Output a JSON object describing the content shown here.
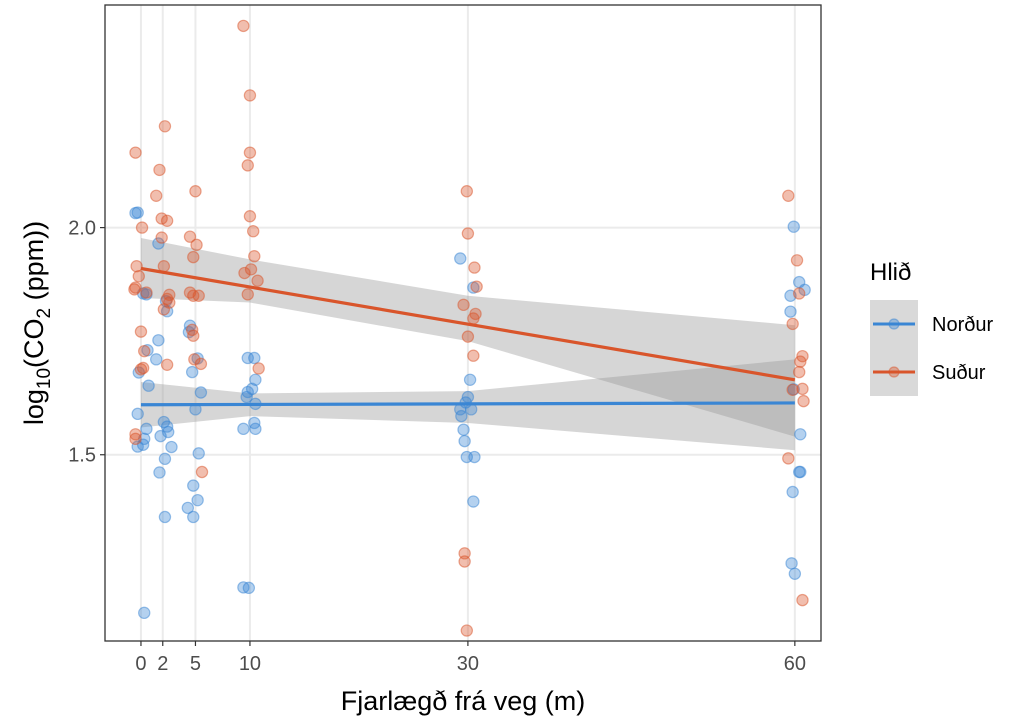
{
  "chart_data": {
    "type": "scatter",
    "title": "",
    "xlabel": "Fjarlægð frá veg (m)",
    "ylabel": {
      "prefix": "log",
      "sub1": "10",
      "mid": "(CO",
      "sub2": "2",
      "suffix": " (ppm))"
    },
    "xlim": [
      -3.3,
      62.4
    ],
    "ylim": [
      1.09,
      2.49
    ],
    "x_ticks": [
      {
        "value": 0,
        "label": "0"
      },
      {
        "value": 2,
        "label": "2"
      },
      {
        "value": 5,
        "label": "5"
      },
      {
        "value": 10,
        "label": "10"
      },
      {
        "value": 30,
        "label": "30"
      },
      {
        "value": 60,
        "label": "60"
      }
    ],
    "y_ticks": [
      {
        "value": 1.5,
        "label": "1.5"
      },
      {
        "value": 2.0,
        "label": "2.0"
      }
    ],
    "grid": true,
    "legend": {
      "title": "Hlið",
      "position": "right"
    },
    "series": [
      {
        "name": "Norður",
        "color": "#3a86d4",
        "trend": {
          "x": [
            0,
            60
          ],
          "y": [
            1.61,
            1.614
          ]
        },
        "band": {
          "x": [
            0,
            10,
            30,
            60
          ],
          "lower": [
            1.56,
            1.585,
            1.57,
            1.51
          ],
          "upper": [
            1.66,
            1.635,
            1.64,
            1.71
          ]
        },
        "points": [
          [
            -0.3,
            2.033
          ],
          [
            -0.5,
            2.032
          ],
          [
            0.5,
            1.853
          ],
          [
            0.2,
            1.855
          ],
          [
            0.6,
            1.73
          ],
          [
            -0.2,
            1.681
          ],
          [
            0.7,
            1.652
          ],
          [
            -0.3,
            1.59
          ],
          [
            0.5,
            1.557
          ],
          [
            0.3,
            1.535
          ],
          [
            -0.3,
            1.518
          ],
          [
            0.2,
            1.522
          ],
          [
            0.3,
            1.152
          ],
          [
            1.6,
            1.965
          ],
          [
            2.3,
            1.838
          ],
          [
            2.4,
            1.816
          ],
          [
            1.4,
            1.71
          ],
          [
            1.6,
            1.752
          ],
          [
            2.4,
            1.562
          ],
          [
            2.1,
            1.572
          ],
          [
            1.8,
            1.541
          ],
          [
            2.5,
            1.55
          ],
          [
            2.8,
            1.517
          ],
          [
            2.2,
            1.491
          ],
          [
            1.7,
            1.461
          ],
          [
            2.2,
            1.363
          ],
          [
            4.5,
            1.784
          ],
          [
            4.4,
            1.77
          ],
          [
            5.2,
            1.712
          ],
          [
            4.7,
            1.682
          ],
          [
            5.5,
            1.637
          ],
          [
            5.0,
            1.6
          ],
          [
            5.3,
            1.503
          ],
          [
            4.8,
            1.432
          ],
          [
            5.2,
            1.4
          ],
          [
            4.3,
            1.383
          ],
          [
            4.8,
            1.363
          ],
          [
            9.8,
            1.713
          ],
          [
            10.4,
            1.713
          ],
          [
            10.5,
            1.665
          ],
          [
            10.2,
            1.645
          ],
          [
            9.8,
            1.638
          ],
          [
            9.7,
            1.627
          ],
          [
            10.5,
            1.612
          ],
          [
            10.4,
            1.57
          ],
          [
            9.4,
            1.557
          ],
          [
            10.5,
            1.557
          ],
          [
            9.4,
            1.208
          ],
          [
            9.9,
            1.207
          ],
          [
            29.3,
            1.932
          ],
          [
            30.5,
            1.868
          ],
          [
            30.2,
            1.665
          ],
          [
            30.0,
            1.627
          ],
          [
            29.8,
            1.615
          ],
          [
            29.3,
            1.6
          ],
          [
            30.3,
            1.6
          ],
          [
            29.4,
            1.585
          ],
          [
            29.6,
            1.555
          ],
          [
            29.7,
            1.53
          ],
          [
            29.9,
            1.495
          ],
          [
            30.6,
            1.495
          ],
          [
            30.5,
            1.397
          ],
          [
            59.9,
            2.002
          ],
          [
            60.4,
            1.88
          ],
          [
            60.9,
            1.863
          ],
          [
            59.6,
            1.85
          ],
          [
            59.6,
            1.815
          ],
          [
            59.9,
            1.644
          ],
          [
            60.5,
            1.545
          ],
          [
            60.4,
            1.462
          ],
          [
            60.5,
            1.462
          ],
          [
            59.8,
            1.418
          ],
          [
            59.7,
            1.261
          ],
          [
            60.0,
            1.238
          ]
        ]
      },
      {
        "name": "Suður",
        "color": "#d9552b",
        "trend": {
          "x": [
            0,
            60
          ],
          "y": [
            1.91,
            1.665
          ]
        },
        "band": {
          "x": [
            0,
            10,
            30,
            60
          ],
          "lower": [
            1.845,
            1.835,
            1.75,
            1.54
          ],
          "upper": [
            1.977,
            1.93,
            1.85,
            1.785
          ]
        },
        "points": [
          [
            -0.5,
            2.165
          ],
          [
            0.1,
            2.0
          ],
          [
            -0.4,
            1.915
          ],
          [
            -0.2,
            1.893
          ],
          [
            -0.5,
            1.868
          ],
          [
            -0.6,
            1.864
          ],
          [
            0.5,
            1.857
          ],
          [
            0.0,
            1.771
          ],
          [
            0.3,
            1.728
          ],
          [
            0.0,
            1.688
          ],
          [
            0.2,
            1.691
          ],
          [
            -0.5,
            1.545
          ],
          [
            -0.5,
            1.535
          ],
          [
            2.2,
            2.223
          ],
          [
            1.7,
            2.127
          ],
          [
            1.4,
            2.07
          ],
          [
            1.9,
            2.02
          ],
          [
            2.4,
            2.015
          ],
          [
            1.9,
            1.978
          ],
          [
            2.1,
            1.915
          ],
          [
            2.6,
            1.852
          ],
          [
            2.4,
            1.843
          ],
          [
            2.6,
            1.835
          ],
          [
            2.1,
            1.82
          ],
          [
            2.4,
            1.698
          ],
          [
            5.0,
            2.08
          ],
          [
            4.5,
            1.98
          ],
          [
            5.1,
            1.962
          ],
          [
            4.8,
            1.935
          ],
          [
            4.5,
            1.857
          ],
          [
            4.8,
            1.85
          ],
          [
            5.3,
            1.85
          ],
          [
            4.7,
            1.775
          ],
          [
            4.8,
            1.762
          ],
          [
            4.9,
            1.71
          ],
          [
            5.5,
            1.7
          ],
          [
            5.6,
            1.462
          ],
          [
            9.4,
            2.444
          ],
          [
            10.0,
            2.291
          ],
          [
            10.0,
            2.165
          ],
          [
            9.8,
            2.137
          ],
          [
            10.0,
            2.025
          ],
          [
            10.3,
            1.992
          ],
          [
            10.4,
            1.937
          ],
          [
            10.1,
            1.908
          ],
          [
            9.5,
            1.9
          ],
          [
            10.7,
            1.883
          ],
          [
            9.8,
            1.853
          ],
          [
            10.8,
            1.69
          ],
          [
            29.9,
            2.08
          ],
          [
            30.0,
            1.987
          ],
          [
            30.6,
            1.912
          ],
          [
            30.8,
            1.87
          ],
          [
            30.7,
            1.81
          ],
          [
            29.6,
            1.83
          ],
          [
            30.5,
            1.8
          ],
          [
            30.0,
            1.76
          ],
          [
            30.5,
            1.718
          ],
          [
            29.7,
            1.283
          ],
          [
            29.7,
            1.265
          ],
          [
            29.9,
            1.113
          ],
          [
            59.4,
            2.07
          ],
          [
            60.2,
            1.928
          ],
          [
            60.4,
            1.855
          ],
          [
            59.8,
            1.788
          ],
          [
            60.7,
            1.717
          ],
          [
            60.5,
            1.705
          ],
          [
            60.4,
            1.682
          ],
          [
            60.7,
            1.645
          ],
          [
            59.8,
            1.643
          ],
          [
            60.8,
            1.618
          ],
          [
            59.4,
            1.492
          ],
          [
            60.7,
            1.18
          ]
        ]
      }
    ]
  }
}
